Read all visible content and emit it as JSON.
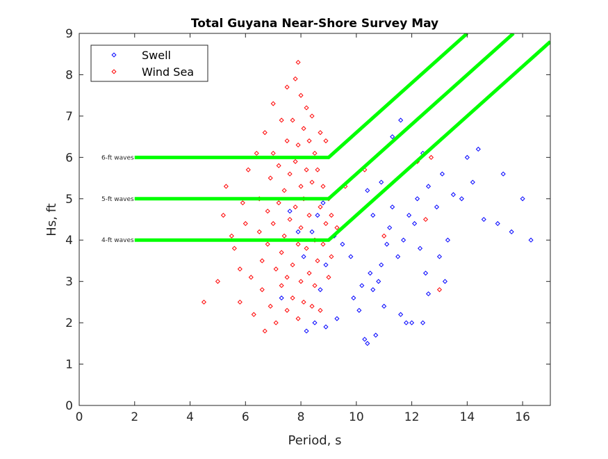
{
  "chart_data": {
    "type": "scatter",
    "title": "Total Guyana Near-Shore Survey May",
    "xlabel": "Period, s",
    "ylabel": "Hs, ft",
    "xlim": [
      0,
      17
    ],
    "ylim": [
      0,
      9
    ],
    "xticks": [
      0,
      2,
      4,
      6,
      8,
      10,
      12,
      14,
      16
    ],
    "yticks": [
      0,
      1,
      2,
      3,
      4,
      5,
      6,
      7,
      8,
      9
    ],
    "grid": false,
    "legend_placement": "top-left",
    "series": [
      {
        "name": "Swell",
        "color": "#0000ff",
        "marker": "diamond",
        "points": [
          [
            8.6,
            4.6
          ],
          [
            8.8,
            4.9
          ],
          [
            8.4,
            4.2
          ],
          [
            8.9,
            3.4
          ],
          [
            8.7,
            2.8
          ],
          [
            8.5,
            2.0
          ],
          [
            8.2,
            1.8
          ],
          [
            8.9,
            1.9
          ],
          [
            9.3,
            2.1
          ],
          [
            9.2,
            4.1
          ],
          [
            9.5,
            3.9
          ],
          [
            9.8,
            3.6
          ],
          [
            9.9,
            2.6
          ],
          [
            10.1,
            2.3
          ],
          [
            10.3,
            1.6
          ],
          [
            10.4,
            1.5
          ],
          [
            10.7,
            1.7
          ],
          [
            10.2,
            2.9
          ],
          [
            10.5,
            3.2
          ],
          [
            10.6,
            2.8
          ],
          [
            10.8,
            3.0
          ],
          [
            10.9,
            3.4
          ],
          [
            11.0,
            2.4
          ],
          [
            11.1,
            3.9
          ],
          [
            11.2,
            4.3
          ],
          [
            10.6,
            4.6
          ],
          [
            10.4,
            5.2
          ],
          [
            10.9,
            5.4
          ],
          [
            11.3,
            4.8
          ],
          [
            11.5,
            3.6
          ],
          [
            11.6,
            2.2
          ],
          [
            11.8,
            2.0
          ],
          [
            12.0,
            2.0
          ],
          [
            12.4,
            2.0
          ],
          [
            11.7,
            4.0
          ],
          [
            11.9,
            4.6
          ],
          [
            12.1,
            4.4
          ],
          [
            12.3,
            3.8
          ],
          [
            12.5,
            3.2
          ],
          [
            12.6,
            2.7
          ],
          [
            13.0,
            3.6
          ],
          [
            13.2,
            3.0
          ],
          [
            12.2,
            5.0
          ],
          [
            12.6,
            5.3
          ],
          [
            12.9,
            4.8
          ],
          [
            13.1,
            5.6
          ],
          [
            13.5,
            5.1
          ],
          [
            13.8,
            5.0
          ],
          [
            14.2,
            5.4
          ],
          [
            14.4,
            6.2
          ],
          [
            14.0,
            6.0
          ],
          [
            13.3,
            4.0
          ],
          [
            14.6,
            4.5
          ],
          [
            15.1,
            4.4
          ],
          [
            15.3,
            5.6
          ],
          [
            15.6,
            4.2
          ],
          [
            16.0,
            5.0
          ],
          [
            16.3,
            4.0
          ],
          [
            11.6,
            6.9
          ],
          [
            11.3,
            6.5
          ],
          [
            12.4,
            6.1
          ],
          [
            7.6,
            4.7
          ],
          [
            7.9,
            4.2
          ],
          [
            8.1,
            3.6
          ],
          [
            7.3,
            2.6
          ]
        ]
      },
      {
        "name": "Wind Sea",
        "color": "#ff0000",
        "marker": "diamond",
        "points": [
          [
            4.5,
            2.5
          ],
          [
            5.0,
            3.0
          ],
          [
            5.2,
            4.6
          ],
          [
            5.3,
            5.3
          ],
          [
            5.6,
            3.8
          ],
          [
            5.5,
            4.1
          ],
          [
            5.8,
            3.3
          ],
          [
            5.9,
            4.9
          ],
          [
            5.8,
            2.5
          ],
          [
            6.1,
            5.7
          ],
          [
            6.0,
            4.4
          ],
          [
            6.2,
            3.1
          ],
          [
            6.3,
            2.2
          ],
          [
            6.4,
            6.1
          ],
          [
            6.5,
            4.2
          ],
          [
            6.5,
            5.0
          ],
          [
            6.6,
            3.5
          ],
          [
            6.6,
            2.8
          ],
          [
            6.7,
            1.8
          ],
          [
            6.7,
            6.6
          ],
          [
            6.8,
            4.7
          ],
          [
            6.8,
            3.9
          ],
          [
            6.9,
            5.5
          ],
          [
            6.9,
            2.4
          ],
          [
            7.0,
            7.3
          ],
          [
            7.0,
            6.1
          ],
          [
            7.0,
            4.4
          ],
          [
            7.1,
            3.3
          ],
          [
            7.1,
            2.0
          ],
          [
            7.2,
            5.8
          ],
          [
            7.2,
            4.9
          ],
          [
            7.3,
            6.9
          ],
          [
            7.3,
            3.7
          ],
          [
            7.3,
            2.9
          ],
          [
            7.4,
            5.2
          ],
          [
            7.4,
            4.1
          ],
          [
            7.5,
            7.7
          ],
          [
            7.5,
            6.4
          ],
          [
            7.5,
            3.1
          ],
          [
            7.5,
            2.3
          ],
          [
            7.6,
            5.6
          ],
          [
            7.6,
            4.5
          ],
          [
            7.7,
            6.9
          ],
          [
            7.7,
            3.4
          ],
          [
            7.7,
            2.6
          ],
          [
            7.8,
            7.9
          ],
          [
            7.8,
            5.9
          ],
          [
            7.8,
            4.8
          ],
          [
            7.9,
            8.3
          ],
          [
            7.9,
            6.3
          ],
          [
            7.9,
            3.9
          ],
          [
            7.9,
            2.1
          ],
          [
            8.0,
            7.5
          ],
          [
            8.0,
            5.3
          ],
          [
            8.0,
            4.3
          ],
          [
            8.0,
            3.0
          ],
          [
            8.1,
            6.7
          ],
          [
            8.1,
            5.0
          ],
          [
            8.1,
            2.5
          ],
          [
            8.2,
            7.2
          ],
          [
            8.2,
            5.7
          ],
          [
            8.2,
            3.8
          ],
          [
            8.3,
            6.4
          ],
          [
            8.3,
            4.6
          ],
          [
            8.3,
            3.2
          ],
          [
            8.4,
            7.0
          ],
          [
            8.4,
            5.4
          ],
          [
            8.4,
            2.4
          ],
          [
            8.5,
            6.1
          ],
          [
            8.5,
            4.0
          ],
          [
            8.5,
            2.9
          ],
          [
            8.6,
            5.7
          ],
          [
            8.6,
            3.5
          ],
          [
            8.7,
            6.6
          ],
          [
            8.7,
            4.8
          ],
          [
            8.7,
            2.3
          ],
          [
            8.8,
            5.3
          ],
          [
            8.8,
            3.9
          ],
          [
            8.9,
            6.4
          ],
          [
            8.9,
            4.4
          ],
          [
            9.0,
            3.1
          ],
          [
            9.0,
            5.0
          ],
          [
            9.1,
            3.6
          ],
          [
            9.1,
            4.6
          ],
          [
            9.3,
            4.3
          ],
          [
            9.6,
            5.3
          ],
          [
            10.3,
            5.7
          ],
          [
            11.0,
            4.1
          ],
          [
            12.2,
            5.9
          ],
          [
            12.7,
            6.0
          ],
          [
            13.0,
            2.8
          ],
          [
            12.5,
            4.5
          ]
        ]
      }
    ],
    "reference_lines": [
      {
        "label": "6-ft waves",
        "color": "#00ff00",
        "points": [
          [
            2,
            6
          ],
          [
            9,
            6
          ],
          [
            14,
            9
          ]
        ]
      },
      {
        "label": "5-ft waves",
        "color": "#00ff00",
        "points": [
          [
            2,
            5
          ],
          [
            9,
            5
          ],
          [
            15.67,
            9
          ]
        ]
      },
      {
        "label": "4-ft waves",
        "color": "#00ff00",
        "points": [
          [
            2,
            4
          ],
          [
            9,
            4
          ],
          [
            17,
            8.8
          ]
        ]
      }
    ]
  }
}
